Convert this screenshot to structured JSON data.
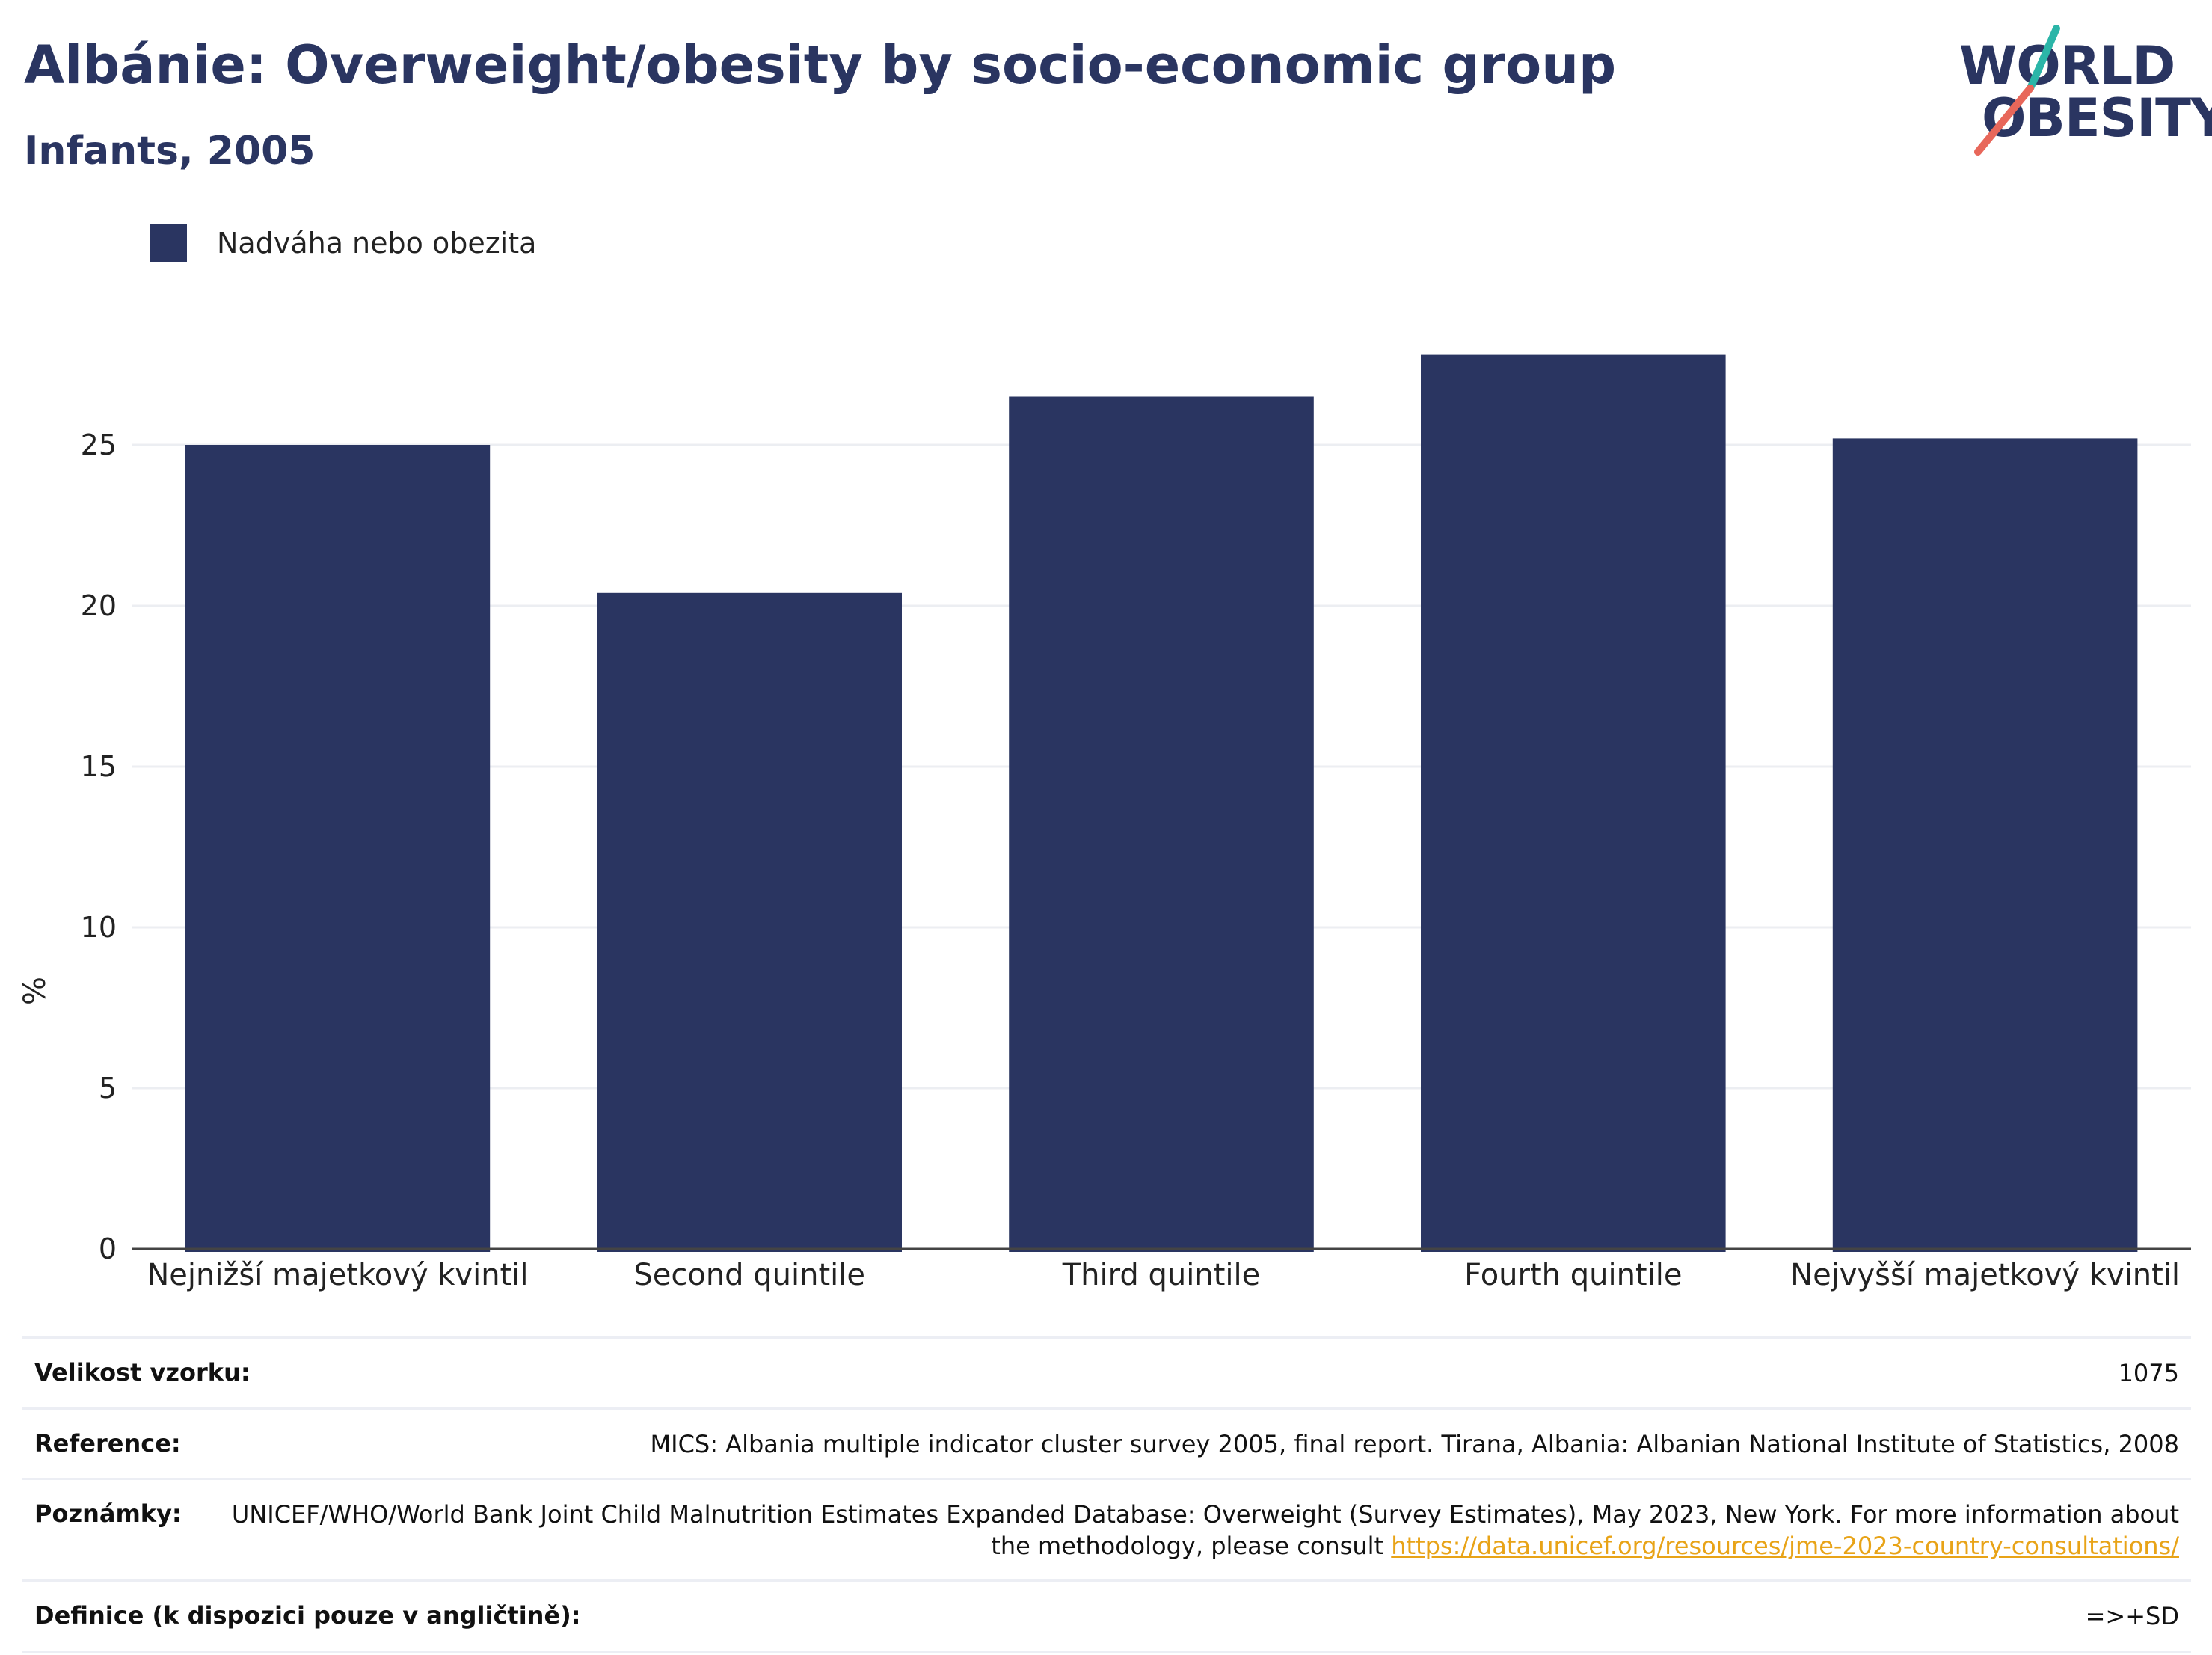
{
  "header": {
    "title": "Albánie: Overweight/obesity by socio-economic group",
    "subtitle": "Infants, 2005"
  },
  "logo": {
    "line1": "WORLD",
    "line2": "OBESITY",
    "colors": {
      "teal": "#2bb5a8",
      "coral": "#e8675a",
      "navy": "#2a3561"
    }
  },
  "legend": {
    "label": "Nadváha nebo obezita",
    "color": "#2a3561"
  },
  "chart_data": {
    "type": "bar",
    "categories": [
      "Nejnižší majetkový kvintil",
      "Second quintile",
      "Third quintile",
      "Fourth quintile",
      "Nejvyšší majetkový kvintil"
    ],
    "series": [
      {
        "name": "Nadváha nebo obezita",
        "values": [
          25.0,
          20.4,
          26.5,
          27.8,
          25.2
        ],
        "color": "#2a3561"
      }
    ],
    "ylabel": "%",
    "ylim": [
      0,
      30
    ],
    "yticks": [
      0,
      5,
      10,
      15,
      20,
      25
    ],
    "grid": true,
    "legend_position": "top-left"
  },
  "meta": {
    "sample_size_label": "Velikost vzorku:",
    "sample_size_value": "1075",
    "reference_label": "Reference:",
    "reference_value": "MICS: Albania multiple indicator cluster survey 2005, final report. Tirana, Albania: Albanian National Institute of Statistics, 2008",
    "notes_label": "Poznámky:",
    "notes_value": "UNICEF/WHO/World Bank Joint Child Malnutrition Estimates Expanded Database: Overweight (Survey Estimates), May 2023, New York. For more information about the methodology, please consult ",
    "notes_link": "https://data.unicef.org/resources/jme-2023-country-consultations/",
    "definition_label": "Definice (k dispozici pouze v angličtině):",
    "definition_value": "=>+SD"
  }
}
